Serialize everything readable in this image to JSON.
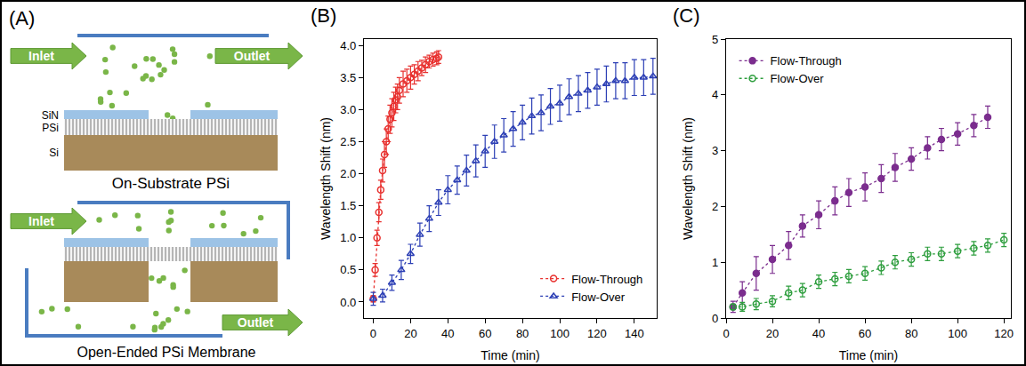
{
  "diagram": {
    "label": "(A)",
    "top": {
      "inlet": "Inlet",
      "outlet": "Outlet",
      "layers": [
        "SiN",
        "PSi",
        "Si"
      ],
      "caption": "On-Substrate PSi"
    },
    "bottom": {
      "inlet": "Inlet",
      "outlet": "Outlet",
      "caption": "Open-Ended PSi Membrane"
    }
  },
  "chart_data": [
    {
      "type": "scatter",
      "title": "(B)",
      "x_label": "Time (min)",
      "y_label": "Wavelength Shift (nm)",
      "xlim": [
        -5,
        152
      ],
      "xticks": [
        0,
        20,
        40,
        60,
        80,
        100,
        120,
        140
      ],
      "ylim": [
        -0.25,
        4.1
      ],
      "yticks": [
        {
          "value": 0,
          "label": "0.0"
        },
        0.5,
        {
          "value": 1,
          "label": "1.0"
        },
        1.5,
        {
          "value": 2,
          "label": "2.0"
        },
        2.5,
        {
          "value": 3,
          "label": "3.0"
        },
        3.5,
        {
          "value": 4,
          "label": "4.0"
        }
      ],
      "grid": false,
      "legend": "lower right",
      "series": [
        {
          "name": "Flow-Through",
          "color": "#e8312f",
          "marker": "circle-open",
          "line_style": "dot",
          "x": [
            0,
            1,
            2,
            3,
            4,
            5,
            6,
            7,
            8,
            9,
            10,
            11,
            12,
            13,
            14,
            16,
            18,
            20,
            22,
            24,
            26,
            28,
            30,
            32,
            34,
            35
          ],
          "values": [
            0.05,
            0.5,
            1.0,
            1.4,
            1.75,
            2.05,
            2.3,
            2.5,
            2.7,
            2.85,
            2.95,
            3.05,
            3.15,
            3.2,
            3.3,
            3.4,
            3.45,
            3.5,
            3.55,
            3.6,
            3.65,
            3.7,
            3.75,
            3.78,
            3.8,
            3.82
          ],
          "errors": [
            0.05,
            0.1,
            0.12,
            0.15,
            0.15,
            0.18,
            0.2,
            0.2,
            0.2,
            0.22,
            0.22,
            0.22,
            0.2,
            0.2,
            0.2,
            0.2,
            0.18,
            0.18,
            0.15,
            0.15,
            0.12,
            0.12,
            0.1,
            0.1,
            0.1,
            0.1
          ]
        },
        {
          "name": "Flow-Over",
          "color": "#2c3fb5",
          "marker": "triangle-up-open",
          "line_style": "dot",
          "x": [
            0,
            5,
            10,
            15,
            20,
            25,
            30,
            35,
            40,
            45,
            50,
            55,
            60,
            65,
            70,
            75,
            80,
            85,
            90,
            95,
            100,
            105,
            110,
            115,
            120,
            125,
            130,
            135,
            140,
            145,
            150
          ],
          "values": [
            0.05,
            0.1,
            0.3,
            0.5,
            0.75,
            1.05,
            1.3,
            1.55,
            1.75,
            1.9,
            2.05,
            2.2,
            2.35,
            2.5,
            2.6,
            2.7,
            2.8,
            2.9,
            2.95,
            3.05,
            3.1,
            3.2,
            3.25,
            3.3,
            3.35,
            3.4,
            3.45,
            3.45,
            3.5,
            3.5,
            3.52
          ],
          "errors": [
            0.1,
            0.1,
            0.12,
            0.15,
            0.15,
            0.18,
            0.2,
            0.2,
            0.22,
            0.22,
            0.24,
            0.25,
            0.25,
            0.26,
            0.26,
            0.27,
            0.27,
            0.28,
            0.28,
            0.28,
            0.28,
            0.28,
            0.28,
            0.28,
            0.28,
            0.28,
            0.28,
            0.28,
            0.28,
            0.28,
            0.28
          ]
        }
      ]
    },
    {
      "type": "scatter",
      "title": "(C)",
      "x_label": "Time (min)",
      "y_label": "Wavelength Shift (nm)",
      "xlim": [
        0,
        123
      ],
      "xticks": [
        0,
        20,
        40,
        60,
        80,
        100,
        120
      ],
      "ylim": [
        0,
        5
      ],
      "yticks": [
        0,
        1,
        2,
        3,
        4,
        5
      ],
      "grid": false,
      "legend": "upper left",
      "series": [
        {
          "name": "Flow-Through",
          "color": "#7b2d8e",
          "marker": "circle",
          "line_style": "dot",
          "x": [
            3,
            7,
            13,
            20,
            27,
            33,
            40,
            47,
            53,
            60,
            67,
            73,
            80,
            87,
            93,
            100,
            107,
            113
          ],
          "values": [
            0.2,
            0.45,
            0.8,
            1.05,
            1.3,
            1.65,
            1.85,
            2.1,
            2.25,
            2.35,
            2.5,
            2.7,
            2.85,
            3.05,
            3.2,
            3.3,
            3.45,
            3.6
          ],
          "errors": [
            0.1,
            0.2,
            0.3,
            0.25,
            0.25,
            0.2,
            0.25,
            0.25,
            0.25,
            0.25,
            0.25,
            0.25,
            0.2,
            0.2,
            0.2,
            0.2,
            0.2,
            0.2
          ]
        },
        {
          "name": "Flow-Over",
          "color": "#2e9e3e",
          "marker": "circle-open",
          "line_style": "dot",
          "x": [
            3,
            7,
            13,
            20,
            27,
            33,
            40,
            47,
            53,
            60,
            67,
            73,
            80,
            87,
            93,
            100,
            107,
            113,
            120
          ],
          "values": [
            0.2,
            0.2,
            0.25,
            0.3,
            0.45,
            0.5,
            0.65,
            0.7,
            0.75,
            0.8,
            0.9,
            1.0,
            1.05,
            1.15,
            1.15,
            1.2,
            1.25,
            1.3,
            1.4
          ],
          "errors": [
            0.05,
            0.08,
            0.1,
            0.1,
            0.12,
            0.12,
            0.12,
            0.12,
            0.12,
            0.12,
            0.12,
            0.12,
            0.12,
            0.12,
            0.12,
            0.12,
            0.12,
            0.12,
            0.12
          ]
        }
      ]
    }
  ]
}
